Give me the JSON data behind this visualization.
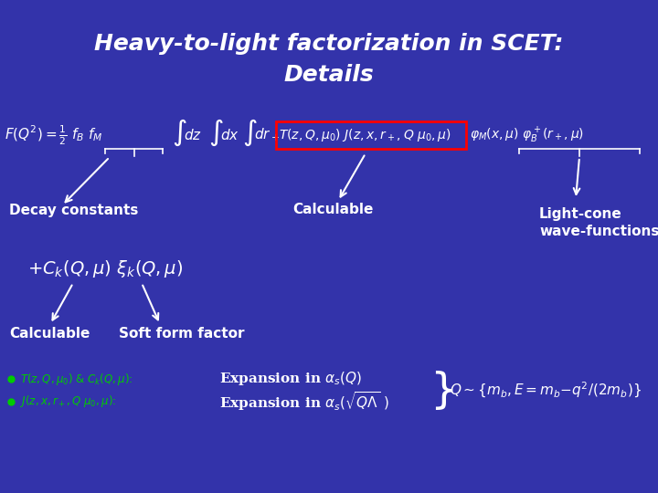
{
  "background_color": "#3333aa",
  "title_line1": "Heavy-to-light factorization in SCET:",
  "title_line2": "Details",
  "text_color": "#ffffff",
  "green_color": "#00cc00",
  "box_color": "#cc0000",
  "decay_label": "Decay constants",
  "calculable_label": "Calculable",
  "lightcone_label": "Light-cone\nwave-functions",
  "plus_eq": "+ C_k(Q,\\mu) \\xi_k(Q,\\mu)",
  "calc2_label": "Calculable",
  "soft_label": "Soft form factor",
  "figsize": [
    7.2,
    5.4
  ],
  "dpi": 100
}
